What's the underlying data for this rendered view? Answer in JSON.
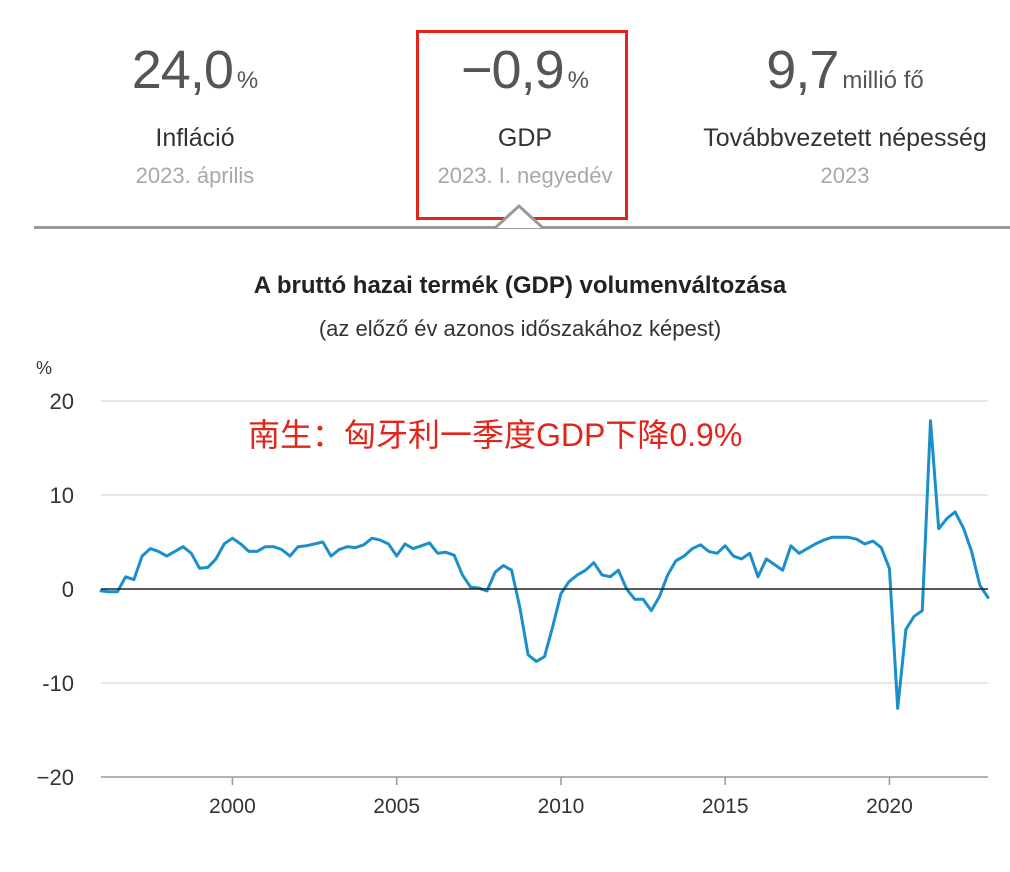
{
  "stats": [
    {
      "value": "24,0",
      "unit": "%",
      "label": "Infláció",
      "date": "2023. április"
    },
    {
      "value": "−0,9",
      "unit": "%",
      "label": "GDP",
      "date": "2023. I. negyedév"
    },
    {
      "value": "9,7",
      "unit": "millió fő",
      "label": "Továbbvezetett népesség",
      "date": "2023"
    }
  ],
  "colors": {
    "line": "#1a8fc9",
    "highlight": "#e3241b",
    "zero_line": "#222222",
    "grid": "#dddddd"
  },
  "chart_data": {
    "type": "line",
    "title": "A bruttó hazai termék (GDP) volumenváltozása",
    "subtitle": "(az előző év azonos időszakához képest)",
    "ylabel": "%",
    "annotation": "南生：匈牙利一季度GDP下降0.9%",
    "ylim": [
      -20,
      20
    ],
    "yticks": [
      20,
      10,
      0,
      -10,
      -20
    ],
    "ytick_labels": [
      "20",
      "10",
      "0",
      "-10",
      "−20"
    ],
    "xlim": [
      1996,
      2023
    ],
    "xticks": [
      2000,
      2005,
      2010,
      2015,
      2020
    ],
    "grid": true,
    "series": [
      {
        "x": [
          1996.0,
          1996.25,
          1996.5,
          1996.75,
          1997.0,
          1997.25,
          1997.5,
          1997.75,
          1998.0,
          1998.25,
          1998.5,
          1998.75,
          1999.0,
          1999.25,
          1999.5,
          1999.75,
          2000.0,
          2000.25,
          2000.5,
          2000.75,
          2001.0,
          2001.25,
          2001.5,
          2001.75,
          2002.0,
          2002.25,
          2002.5,
          2002.75,
          2003.0,
          2003.25,
          2003.5,
          2003.75,
          2004.0,
          2004.25,
          2004.5,
          2004.75,
          2005.0,
          2005.25,
          2005.5,
          2005.75,
          2006.0,
          2006.25,
          2006.5,
          2006.75,
          2007.0,
          2007.25,
          2007.5,
          2007.75,
          2008.0,
          2008.25,
          2008.5,
          2008.75,
          2009.0,
          2009.25,
          2009.5,
          2009.75,
          2010.0,
          2010.25,
          2010.5,
          2010.75,
          2011.0,
          2011.25,
          2011.5,
          2011.75,
          2012.0,
          2012.25,
          2012.5,
          2012.75,
          2013.0,
          2013.25,
          2013.5,
          2013.75,
          2014.0,
          2014.25,
          2014.5,
          2014.75,
          2015.0,
          2015.25,
          2015.5,
          2015.75,
          2016.0,
          2016.25,
          2016.5,
          2016.75,
          2017.0,
          2017.25,
          2017.5,
          2017.75,
          2018.0,
          2018.25,
          2018.5,
          2018.75,
          2019.0,
          2019.25,
          2019.5,
          2019.75,
          2020.0,
          2020.25,
          2020.5,
          2020.75,
          2021.0,
          2021.25,
          2021.5,
          2021.75,
          2022.0,
          2022.25,
          2022.5,
          2022.75,
          2023.0
        ],
        "y": [
          -0.2,
          -0.3,
          -0.3,
          1.3,
          1.0,
          3.5,
          4.3,
          4.0,
          3.5,
          4.0,
          4.5,
          3.8,
          2.2,
          2.3,
          3.2,
          4.8,
          5.4,
          4.8,
          4.0,
          4.0,
          4.5,
          4.5,
          4.2,
          3.5,
          4.5,
          4.6,
          4.8,
          5.0,
          3.5,
          4.2,
          4.5,
          4.4,
          4.7,
          5.4,
          5.2,
          4.8,
          3.5,
          4.8,
          4.3,
          4.6,
          4.9,
          3.8,
          3.9,
          3.6,
          1.5,
          0.2,
          0.1,
          -0.2,
          1.8,
          2.5,
          2.0,
          -2.0,
          -7.0,
          -7.7,
          -7.2,
          -4.0,
          -0.5,
          0.8,
          1.5,
          2.0,
          2.8,
          1.5,
          1.3,
          2.0,
          0.0,
          -1.1,
          -1.1,
          -2.3,
          -0.8,
          1.5,
          3.0,
          3.5,
          4.3,
          4.7,
          4.0,
          3.8,
          4.6,
          3.5,
          3.2,
          3.8,
          1.3,
          3.2,
          2.6,
          2.0,
          4.6,
          3.8,
          4.3,
          4.8,
          5.2,
          5.5,
          5.5,
          5.5,
          5.3,
          4.8,
          5.1,
          4.4,
          2.2,
          -12.7,
          -4.3,
          -2.9,
          -2.3,
          17.9,
          6.4,
          7.5,
          8.2,
          6.5,
          4.0,
          0.4,
          -0.9
        ]
      }
    ]
  }
}
